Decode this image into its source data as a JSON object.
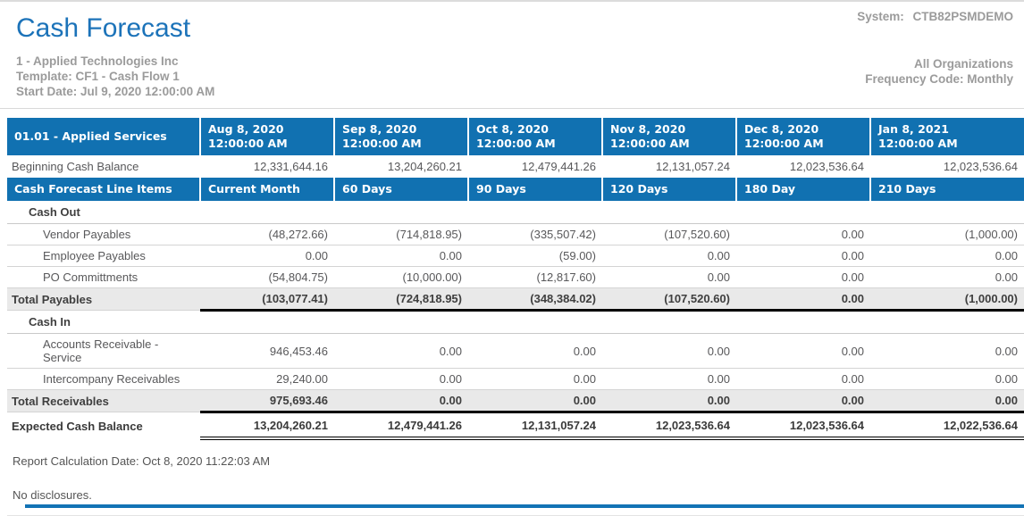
{
  "header": {
    "title": "Cash Forecast",
    "system_label": "System:",
    "system_value": "CTB82PSMDEMO",
    "company": "1 - Applied Technologies Inc",
    "template": "Template: CF1 - Cash Flow 1",
    "start_date": "Start Date: Jul 9, 2020 12:00:00 AM",
    "organizations": "All Organizations",
    "frequency": "Frequency Code: Monthly"
  },
  "colors": {
    "header_blue": "#1171b1",
    "title_blue": "#1c73b9",
    "subtitle_gray": "#9b9b9b",
    "total_row_bg": "#e9e9e9"
  },
  "table": {
    "entity_label": "01.01 - Applied Services",
    "period_columns": [
      {
        "date": "Aug 8, 2020",
        "time": "12:00:00 AM"
      },
      {
        "date": "Sep 8, 2020",
        "time": "12:00:00 AM"
      },
      {
        "date": "Oct 8, 2020",
        "time": "12:00:00 AM"
      },
      {
        "date": "Nov 8, 2020",
        "time": "12:00:00 AM"
      },
      {
        "date": "Dec 8, 2020",
        "time": "12:00:00 AM"
      },
      {
        "date": "Jan 8, 2021",
        "time": "12:00:00 AM"
      }
    ],
    "beginning": {
      "label": "Beginning Cash Balance",
      "values": [
        "12,331,644.16",
        "13,204,260.21",
        "12,479,441.26",
        "12,131,057.24",
        "12,023,536.64",
        "12,023,536.64"
      ]
    },
    "line_items_label": "Cash Forecast Line Items",
    "bucket_columns": [
      "Current Month",
      "60 Days",
      "90 Days",
      "120 Days",
      "180 Day",
      "210 Days"
    ],
    "rows": [
      {
        "type": "section",
        "label": "Cash Out"
      },
      {
        "type": "item",
        "label": "Vendor Payables",
        "values": [
          "(48,272.66)",
          "(714,818.95)",
          "(335,507.42)",
          "(107,520.60)",
          "0.00",
          "(1,000.00)"
        ]
      },
      {
        "type": "item",
        "label": "Employee Payables",
        "values": [
          "0.00",
          "0.00",
          "(59.00)",
          "0.00",
          "0.00",
          "0.00"
        ]
      },
      {
        "type": "item",
        "label": "PO Committments",
        "values": [
          "(54,804.75)",
          "(10,000.00)",
          "(12,817.60)",
          "0.00",
          "0.00",
          "0.00"
        ]
      },
      {
        "type": "total",
        "label": "Total Payables",
        "values": [
          "(103,077.41)",
          "(724,818.95)",
          "(348,384.02)",
          "(107,520.60)",
          "0.00",
          "(1,000.00)"
        ]
      },
      {
        "type": "section",
        "label": "Cash In"
      },
      {
        "type": "item",
        "label": "Accounts Receivable - Service",
        "values": [
          "946,453.46",
          "0.00",
          "0.00",
          "0.00",
          "0.00",
          "0.00"
        ]
      },
      {
        "type": "item",
        "label": "Intercompany Receivables",
        "values": [
          "29,240.00",
          "0.00",
          "0.00",
          "0.00",
          "0.00",
          "0.00"
        ]
      },
      {
        "type": "total",
        "label": "Total Receivables",
        "values": [
          "975,693.46",
          "0.00",
          "0.00",
          "0.00",
          "0.00",
          "0.00"
        ]
      },
      {
        "type": "expected",
        "label": "Expected Cash Balance",
        "values": [
          "13,204,260.21",
          "12,479,441.26",
          "12,131,057.24",
          "12,023,536.64",
          "12,023,536.64",
          "12,022,536.64"
        ]
      }
    ]
  },
  "footer": {
    "calc_date": "Report Calculation Date: Oct 8, 2020 11:22:03 AM",
    "disclosures": "No disclosures."
  }
}
